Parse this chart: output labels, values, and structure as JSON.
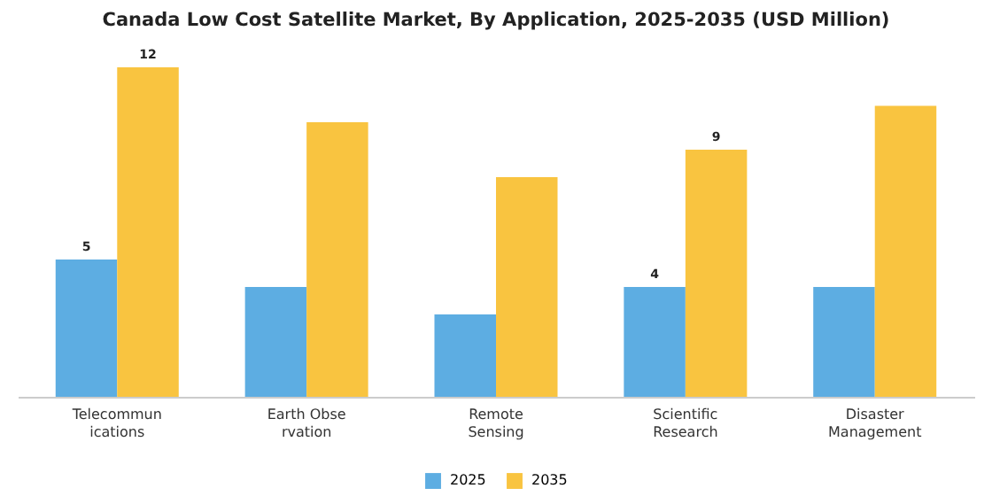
{
  "chart_data": {
    "type": "bar",
    "title": "Canada Low Cost Satellite Market, By Application, 2025-2035 (USD Million)",
    "categories": [
      "Telecommun\nications",
      "Earth Obse\nrvation",
      "Remote\nSensing",
      "Scientific\nResearch",
      "Disaster\nManagement"
    ],
    "series": [
      {
        "name": "2025",
        "color": "#5dade2",
        "values": [
          5,
          4,
          3,
          4,
          4
        ],
        "value_labels": [
          "5",
          null,
          null,
          "4",
          null
        ]
      },
      {
        "name": "2035",
        "color": "#f9c440",
        "values": [
          12,
          10,
          8,
          9,
          10.6
        ],
        "value_labels": [
          "12",
          null,
          null,
          "9",
          null
        ]
      }
    ],
    "tick_labels": "x",
    "legend": "bottom",
    "grid": false
  }
}
